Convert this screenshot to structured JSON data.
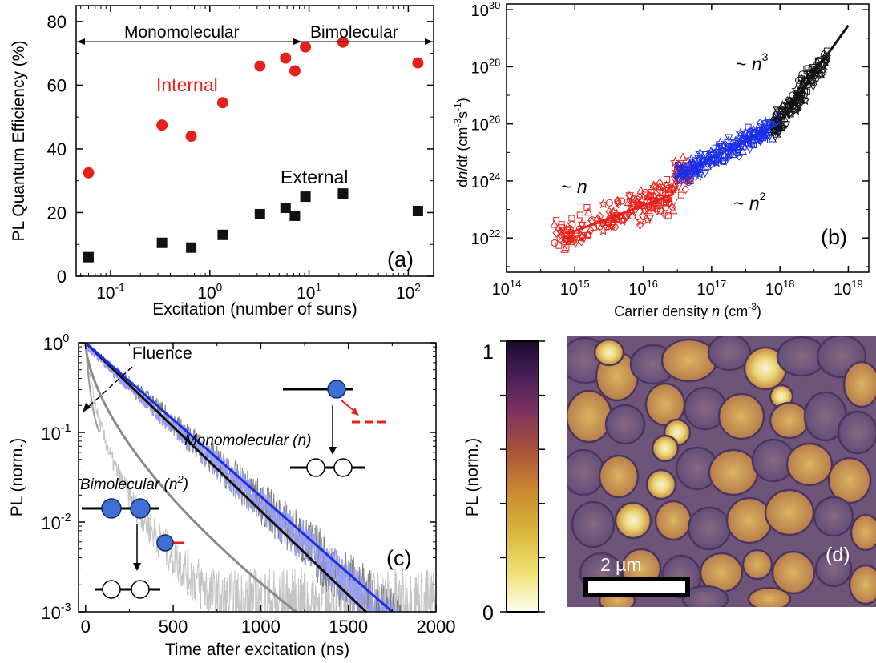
{
  "colors": {
    "red": "#e8201a",
    "black": "#111111",
    "blue": "#1a2ee8",
    "lightblue": "#9aa0f0",
    "gray": "#8a8a8a",
    "lightgray": "#c4c4c4"
  },
  "chart_data": [
    {
      "panel": "(a)",
      "type": "scatter",
      "xlabel": "Excitation (number of suns)",
      "ylabel": "PL Quantum Efficiency (%)",
      "xscale": "log",
      "xlim": [
        0.045,
        180
      ],
      "ylim": [
        0,
        85
      ],
      "yticks": [
        "0",
        "20",
        "40",
        "60",
        "80"
      ],
      "xticks": [
        {
          "base": "10",
          "exp": "-1"
        },
        {
          "base": "10",
          "exp": "0"
        },
        {
          "base": "10",
          "exp": "1"
        },
        {
          "base": "10",
          "exp": "2"
        }
      ],
      "regions": [
        {
          "label": "Monomolecular",
          "from": 0.045,
          "to": 9
        },
        {
          "label": "Bimolecular",
          "from": 9,
          "to": 180
        }
      ],
      "series": [
        {
          "name": "Internal",
          "marker": "circle",
          "color": "red",
          "x": [
            0.06,
            0.33,
            0.65,
            1.35,
            3.2,
            5.8,
            7.2,
            9.2,
            22,
            125
          ],
          "y": [
            32.5,
            47.5,
            44,
            54.5,
            66,
            68.5,
            64.5,
            72,
            73.5,
            67
          ]
        },
        {
          "name": "External",
          "marker": "square",
          "color": "black",
          "x": [
            0.06,
            0.33,
            0.65,
            1.35,
            3.2,
            5.8,
            7.2,
            9.2,
            22,
            125
          ],
          "y": [
            6,
            10.5,
            9,
            13,
            19.5,
            21.5,
            19,
            25,
            26,
            20.5
          ]
        }
      ]
    },
    {
      "panel": "(b)",
      "type": "scatter",
      "xlabel_text": "Carrier density",
      "xlabel_var": "n",
      "xlabel_unit": "(cm",
      "xlabel_unit_exp": "-3",
      "ylabel_parts": [
        "d",
        "n",
        "/d",
        "t",
        " (cm",
        "-3",
        "s",
        "-1",
        ")"
      ],
      "xscale": "log",
      "yscale": "log",
      "xlim_exp": [
        14,
        19.3
      ],
      "ylim_exp": [
        20.8,
        30.2
      ],
      "xticks_exp": [
        "14",
        "15",
        "16",
        "17",
        "18",
        "19"
      ],
      "yticks_exp": [
        "22",
        "24",
        "26",
        "28",
        "30"
      ],
      "annotations": [
        {
          "text": "~ n",
          "sup": ""
        },
        {
          "text": "~ n",
          "sup": "2"
        },
        {
          "text": "~ n",
          "sup": "3"
        }
      ],
      "series": [
        {
          "name": "low-density points",
          "color": "red",
          "range_log_n": [
            14.7,
            16.7
          ]
        },
        {
          "name": "intermediate points",
          "color": "blue",
          "range_log_n": [
            16.5,
            18.0
          ]
        },
        {
          "name": "high-density points",
          "color": "black",
          "range_log_n": [
            17.9,
            18.7
          ]
        }
      ],
      "fits": [
        {
          "color": "red",
          "log_n": [
            14.9,
            16.45
          ],
          "log_y": [
            22.15,
            23.55
          ]
        },
        {
          "color": "blue",
          "log_n": [
            16.45,
            18.0
          ],
          "log_y": [
            24.1,
            26.05
          ]
        },
        {
          "color": "black",
          "log_n": [
            18.0,
            19.0
          ],
          "log_y": [
            26.1,
            29.45
          ]
        }
      ]
    },
    {
      "panel": "(c)",
      "type": "line",
      "xlabel": "Time after excitation (ns)",
      "ylabel": "PL (norm.)",
      "yscale": "log",
      "xlim": [
        -40,
        2000
      ],
      "ylim_exp": [
        -3,
        0
      ],
      "xticks": [
        "0",
        "500",
        "1000",
        "1500",
        "2000"
      ],
      "yticks": [
        {
          "base": "10",
          "exp": "0"
        },
        {
          "base": "10",
          "exp": "-1"
        },
        {
          "base": "10",
          "exp": "-2"
        },
        {
          "base": "10",
          "exp": "-3"
        }
      ],
      "fluence_label": "Fluence",
      "mono_label": "Monomolecular (n)",
      "bi_label_text": "Bimolecular (n",
      "bi_label_exp": "2",
      "bi_label_close": ")",
      "series": [
        {
          "name": "black fit",
          "color": "black",
          "decay_to_1e-3_ns": 1600
        },
        {
          "name": "blue fit",
          "color": "blue",
          "decay_to_1e-3_ns": 1750
        },
        {
          "name": "gray fit",
          "color": "gray",
          "decay_to_1e-3_ns": 1200
        }
      ]
    },
    {
      "panel": "(d)",
      "type": "heatmap",
      "colorbar_label": "PL (norm.)",
      "colorbar_ticks": [
        "0",
        "1"
      ],
      "scalebar_label": "2 µm"
    }
  ]
}
